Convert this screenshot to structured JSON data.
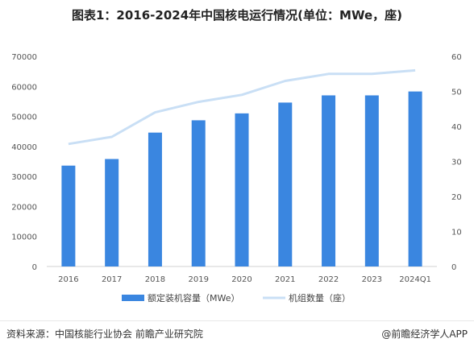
{
  "title": "图表1：2016-2024年中国核电运行情况(单位：MWe，座)",
  "footer": {
    "source": "资料来源：中国核能行业协会 前瞻产业研究院",
    "brand": "@前瞻经济学人APP"
  },
  "chart_data": {
    "type": "bar",
    "categories": [
      "2016",
      "2017",
      "2018",
      "2019",
      "2020",
      "2021",
      "2022",
      "2023",
      "2024Q1"
    ],
    "series": [
      {
        "name": "额定装机容量（MWe）",
        "type": "bar",
        "axis": "left",
        "color": "#3a86e0",
        "values": [
          33600,
          35800,
          44600,
          48700,
          51000,
          54600,
          57000,
          57000,
          58300
        ]
      },
      {
        "name": "机组数量（座）",
        "type": "line",
        "axis": "right",
        "color": "#c9dff5",
        "values": [
          35,
          37,
          44,
          47,
          49,
          53,
          55,
          55,
          56
        ]
      }
    ],
    "y_left": {
      "min": 0,
      "max": 70000,
      "ticks": [
        0,
        10000,
        20000,
        30000,
        40000,
        50000,
        60000,
        70000
      ]
    },
    "y_right": {
      "min": 0,
      "max": 60,
      "ticks": [
        0,
        10,
        20,
        30,
        40,
        50,
        60
      ]
    },
    "legend_position": "bottom",
    "grid": false
  }
}
